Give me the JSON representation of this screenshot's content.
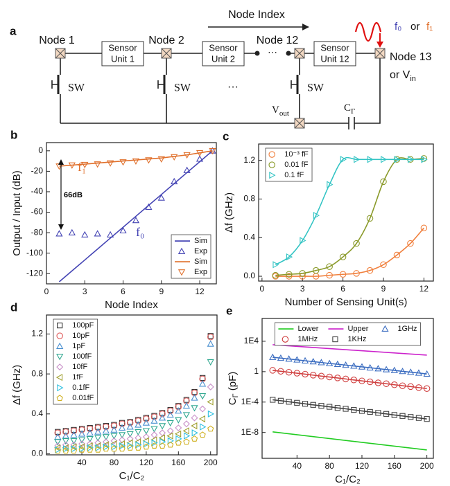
{
  "diagram": {
    "panel_label": "a",
    "title": "Node Index",
    "nodes": [
      "Node 1",
      "Node 2",
      "Node 12",
      "Node 13"
    ],
    "units": [
      [
        "Sensor",
        "Unit 1"
      ],
      [
        "Sensor",
        "Unit 2"
      ],
      [
        "Sensor",
        "Unit 12"
      ]
    ],
    "switch": "SW",
    "ellipsis": "···",
    "input": {
      "f0": "f₀",
      "or": "or",
      "f1": "f₁"
    },
    "node13_alt": {
      "text": "or V",
      "sub": "in"
    },
    "vout": {
      "text": "V",
      "sub": "out"
    },
    "cap": {
      "text": "C",
      "sub": "Γ"
    }
  },
  "chart_data": [
    {
      "type": "line",
      "panel_label": "b",
      "xlabel": "Node Index",
      "ylabel": "Output / Input (dB)",
      "x": [
        1,
        2,
        3,
        4,
        5,
        6,
        7,
        8,
        9,
        10,
        11,
        12,
        13
      ],
      "xlim": [
        0,
        13.3
      ],
      "xticks": [
        0,
        3,
        6,
        9,
        12
      ],
      "ylim": [
        -130,
        8
      ],
      "yticks": [
        0,
        -20,
        -40,
        -60,
        -80,
        -100,
        -120
      ],
      "legend_position": "lower right",
      "series": [
        {
          "name": "Sim",
          "style": "line",
          "color": "#4444b4",
          "values": [
            -128,
            -117.3,
            -106.7,
            -96,
            -85.3,
            -74.7,
            -64,
            -53.3,
            -42.7,
            -32,
            -21.3,
            -10.7,
            0
          ]
        },
        {
          "name": "Exp",
          "style": "markers",
          "marker": "triangle-up",
          "color": "#4444b4",
          "values": [
            -81,
            -80,
            -82,
            -81,
            -82,
            -78,
            -68,
            -55,
            -46,
            -30,
            -19,
            -8,
            0
          ]
        },
        {
          "name": "Sim",
          "style": "line",
          "color": "#e0702c",
          "values": [
            -15,
            -14,
            -13,
            -12,
            -11,
            -10,
            -9,
            -8,
            -7,
            -5.5,
            -4,
            -2,
            0
          ]
        },
        {
          "name": "Exp",
          "style": "markers",
          "marker": "triangle-down",
          "color": "#e0702c",
          "values": [
            -15,
            -14,
            -13.5,
            -13,
            -12,
            -11,
            -10,
            -9,
            -8,
            -6,
            -4,
            -2,
            0
          ]
        }
      ],
      "annotations": [
        {
          "text": "f₁",
          "color": "#e0702c"
        },
        {
          "text": "f₀",
          "color": "#4444b4"
        },
        {
          "text": "66dB",
          "color": "#000000"
        }
      ]
    },
    {
      "type": "line",
      "panel_label": "c",
      "smooth": true,
      "xlabel": "Number of Sensing Unit(s)",
      "ylabel": "Δf (GHz)",
      "x": [
        1,
        2,
        3,
        4,
        5,
        6,
        7,
        8,
        9,
        10,
        11,
        12
      ],
      "xlim": [
        -0.25,
        12.7
      ],
      "xticks": [
        0,
        3,
        6,
        9,
        12
      ],
      "ylim": [
        -0.05,
        1.37
      ],
      "yticks": [
        {
          "value": 0,
          "label": "0.0"
        },
        0.4,
        0.8,
        1.2
      ],
      "legend_position": "upper left",
      "series": [
        {
          "name": "10⁻³ fF",
          "style": "line+markers",
          "marker": "circle",
          "color": "#f07f3c",
          "values": [
            0,
            0,
            0,
            0,
            0.01,
            0.02,
            0.03,
            0.06,
            0.12,
            0.22,
            0.34,
            0.5
          ]
        },
        {
          "name": "0.01 fF",
          "style": "line+markers",
          "marker": "circle",
          "color": "#8a9a2a",
          "values": [
            0.01,
            0.02,
            0.03,
            0.06,
            0.1,
            0.2,
            0.34,
            0.6,
            0.98,
            1.21,
            1.21,
            1.22
          ]
        },
        {
          "name": "0.1   fF",
          "style": "line+markers",
          "marker": "triangle-right",
          "color": "#33c4c4",
          "values": [
            0.12,
            0.2,
            0.37,
            0.63,
            0.95,
            1.21,
            1.21,
            1.21,
            1.21,
            1.21,
            1.21,
            1.21
          ]
        }
      ]
    },
    {
      "type": "scatter",
      "panel_label": "d",
      "xlabel": "C₁/C₂",
      "ylabel": "Δf (GHz)",
      "x": [
        10,
        20,
        30,
        40,
        50,
        60,
        70,
        80,
        90,
        100,
        110,
        120,
        130,
        140,
        150,
        160,
        170,
        180,
        190,
        200
      ],
      "xlim": [
        -4,
        208
      ],
      "xticks": [
        40,
        80,
        120,
        160,
        200
      ],
      "ylim": [
        -0.01,
        1.39
      ],
      "yticks": [
        {
          "value": 0,
          "label": "0.0"
        },
        0.4,
        0.8,
        1.2
      ],
      "legend_position": "upper left",
      "series": [
        {
          "name": "100pF",
          "style": "markers",
          "marker": "square",
          "color": "#333333",
          "values": [
            0.22,
            0.23,
            0.24,
            0.25,
            0.26,
            0.27,
            0.28,
            0.29,
            0.31,
            0.32,
            0.34,
            0.36,
            0.38,
            0.41,
            0.44,
            0.48,
            0.54,
            0.62,
            0.76,
            1.18
          ]
        },
        {
          "name": "10pF",
          "style": "markers",
          "marker": "circle",
          "color": "#e06060",
          "values": [
            0.21,
            0.22,
            0.23,
            0.24,
            0.25,
            0.26,
            0.27,
            0.28,
            0.3,
            0.31,
            0.33,
            0.35,
            0.37,
            0.4,
            0.43,
            0.47,
            0.53,
            0.61,
            0.75,
            1.17
          ]
        },
        {
          "name": "1pF",
          "style": "markers",
          "marker": "triangle-up",
          "color": "#4a90d0",
          "values": [
            0.17,
            0.18,
            0.19,
            0.2,
            0.21,
            0.22,
            0.23,
            0.24,
            0.26,
            0.27,
            0.29,
            0.31,
            0.33,
            0.36,
            0.39,
            0.43,
            0.48,
            0.56,
            0.7,
            1.1
          ]
        },
        {
          "name": "100fF",
          "style": "markers",
          "marker": "triangle-down",
          "color": "#30a890",
          "values": [
            0.12,
            0.13,
            0.13,
            0.14,
            0.15,
            0.16,
            0.17,
            0.18,
            0.19,
            0.2,
            0.22,
            0.23,
            0.25,
            0.28,
            0.31,
            0.34,
            0.39,
            0.46,
            0.58,
            0.92
          ]
        },
        {
          "name": "10fF",
          "style": "markers",
          "marker": "diamond",
          "color": "#c890c8",
          "values": [
            0.08,
            0.09,
            0.09,
            0.1,
            0.1,
            0.11,
            0.12,
            0.13,
            0.14,
            0.15,
            0.16,
            0.17,
            0.19,
            0.21,
            0.23,
            0.26,
            0.3,
            0.36,
            0.45,
            0.67
          ]
        },
        {
          "name": "1fF",
          "style": "markers",
          "marker": "triangle-left",
          "color": "#a0a030",
          "values": [
            0.06,
            0.06,
            0.07,
            0.07,
            0.08,
            0.08,
            0.09,
            0.1,
            0.1,
            0.11,
            0.12,
            0.13,
            0.14,
            0.16,
            0.18,
            0.2,
            0.23,
            0.28,
            0.35,
            0.52
          ]
        },
        {
          "name": "0.1fF",
          "style": "markers",
          "marker": "triangle-right",
          "color": "#30c0e0",
          "values": [
            0.04,
            0.05,
            0.05,
            0.05,
            0.06,
            0.06,
            0.07,
            0.07,
            0.08,
            0.08,
            0.09,
            0.1,
            0.11,
            0.12,
            0.13,
            0.15,
            0.18,
            0.21,
            0.27,
            0.4
          ]
        },
        {
          "name": "0.01fF",
          "style": "markers",
          "marker": "pentagon",
          "color": "#d0b020",
          "values": [
            0.03,
            0.03,
            0.03,
            0.04,
            0.04,
            0.04,
            0.05,
            0.05,
            0.05,
            0.06,
            0.06,
            0.07,
            0.08,
            0.08,
            0.09,
            0.11,
            0.12,
            0.15,
            0.19,
            0.25
          ]
        }
      ]
    },
    {
      "type": "line",
      "panel_label": "e",
      "log_y": true,
      "xlabel": "C₁/C₂",
      "ylabel": {
        "text": "C",
        "sub": "Γ",
        "rest": " (pF)"
      },
      "x": [
        10,
        20,
        30,
        40,
        50,
        60,
        70,
        80,
        90,
        100,
        110,
        120,
        130,
        140,
        150,
        160,
        170,
        180,
        190,
        200
      ],
      "xlim": [
        -3,
        208
      ],
      "xticks": [
        40,
        80,
        120,
        160,
        200
      ],
      "ylim": [
        4e-12,
        10000000
      ],
      "yticks": [
        {
          "value": 1e-08,
          "label": "1E-8"
        },
        {
          "value": 0.0001,
          "label": "1E-4"
        },
        1,
        {
          "value": 10000,
          "label": "1E4"
        }
      ],
      "legend_position": "upper center",
      "legend_columns": 3,
      "series": [
        {
          "name": "Lower",
          "style": "line",
          "color": "#22cc22",
          "x": [
            10,
            200
          ],
          "values": [
            1.2e-08,
            5e-11
          ]
        },
        {
          "name": "Upper",
          "style": "line",
          "color": "#cc22cc",
          "x": [
            10,
            200
          ],
          "values": [
            3500,
            150
          ]
        },
        {
          "name": "1GHz",
          "style": "line+markers",
          "marker": "triangle-up",
          "color": "#3a6cc0",
          "values": [
            79,
            61,
            47,
            36,
            27,
            21,
            16,
            12,
            9.5,
            7.3,
            5.6,
            4.3,
            3.3,
            2.5,
            1.9,
            1.5,
            1.1,
            0.87,
            0.67,
            0.5
          ]
        },
        {
          "name": "1MHz",
          "style": "line+markers",
          "marker": "circle",
          "color": "#d04040",
          "values": [
            1.5,
            1.12,
            0.84,
            0.63,
            0.47,
            0.35,
            0.26,
            0.2,
            0.15,
            0.11,
            0.082,
            0.061,
            0.046,
            0.034,
            0.026,
            0.019,
            0.014,
            0.011,
            0.008,
            0.006
          ]
        },
        {
          "name": "1KHz",
          "style": "line+markers",
          "marker": "square",
          "color": "#444444",
          "values": [
            0.0002,
            0.00015,
            0.00011,
            8e-05,
            5.9e-05,
            4.3e-05,
            3.2e-05,
            2.4e-05,
            1.7e-05,
            1.3e-05,
            9.4e-06,
            6.9e-06,
            5.1e-06,
            3.8e-06,
            2.8e-06,
            2e-06,
            1.5e-06,
            1.1e-06,
            8.2e-07,
            6e-07
          ]
        }
      ]
    }
  ]
}
